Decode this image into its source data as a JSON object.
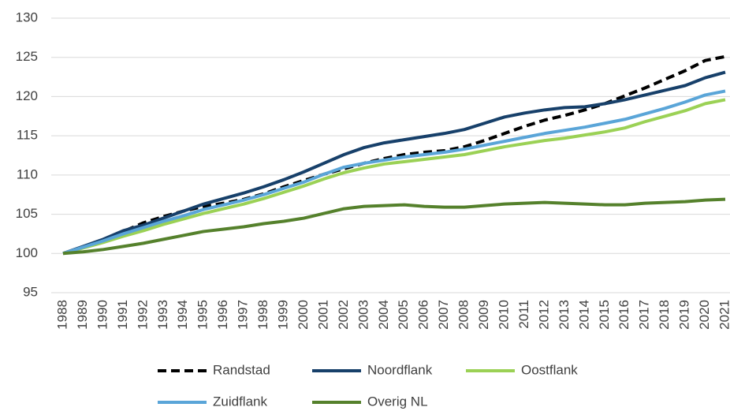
{
  "chart_data": {
    "type": "line",
    "categories": [
      "1988",
      "1989",
      "1990",
      "1991",
      "1992",
      "1993",
      "1994",
      "1995",
      "1996",
      "1997",
      "1998",
      "1999",
      "2000",
      "2001",
      "2002",
      "2003",
      "2004",
      "2005",
      "2006",
      "2007",
      "2008",
      "2009",
      "2010",
      "2011",
      "2012",
      "2013",
      "2014",
      "2015",
      "2016",
      "2017",
      "2018",
      "2019",
      "2020",
      "2021"
    ],
    "series": [
      {
        "name": "Randstad",
        "color": "#000000",
        "dash": true,
        "values": [
          100,
          100.8,
          101.7,
          102.8,
          103.9,
          104.7,
          105.4,
          106,
          106.4,
          106.9,
          107.6,
          108.5,
          109.3,
          110.1,
          110.8,
          111.5,
          112.1,
          112.6,
          112.9,
          113.1,
          113.6,
          114.4,
          115.3,
          116.2,
          117,
          117.6,
          118.3,
          119.1,
          120.1,
          121.1,
          122.2,
          123.3,
          124.6,
          125.1
        ]
      },
      {
        "name": "Noordflank",
        "color": "#17406a",
        "values": [
          100,
          100.9,
          101.8,
          102.9,
          103.6,
          104.5,
          105.4,
          106.3,
          107,
          107.7,
          108.5,
          109.4,
          110.4,
          111.5,
          112.6,
          113.5,
          114.1,
          114.5,
          114.9,
          115.3,
          115.8,
          116.6,
          117.4,
          117.9,
          118.3,
          118.6,
          118.7,
          119.1,
          119.6,
          120.2,
          120.8,
          121.4,
          122.4,
          123.1
        ]
      },
      {
        "name": "Oostflank",
        "color": "#9bd155",
        "values": [
          100,
          100.7,
          101.4,
          102.2,
          102.9,
          103.7,
          104.4,
          105.1,
          105.7,
          106.3,
          107,
          107.8,
          108.6,
          109.5,
          110.3,
          110.9,
          111.4,
          111.7,
          112,
          112.3,
          112.6,
          113.1,
          113.6,
          114,
          114.4,
          114.7,
          115.1,
          115.5,
          116,
          116.8,
          117.5,
          118.2,
          119.1,
          119.6
        ]
      },
      {
        "name": "Zuidflank",
        "color": "#5aa5d8",
        "values": [
          100,
          100.8,
          101.6,
          102.5,
          103.3,
          104.1,
          104.8,
          105.6,
          106.2,
          106.8,
          107.5,
          108.3,
          109.1,
          110.1,
          111,
          111.5,
          111.9,
          112.3,
          112.6,
          112.9,
          113.3,
          113.8,
          114.3,
          114.8,
          115.3,
          115.7,
          116.1,
          116.6,
          117.1,
          117.8,
          118.5,
          119.3,
          120.2,
          120.7
        ]
      },
      {
        "name": "Overig NL",
        "color": "#55812c",
        "values": [
          100,
          100.2,
          100.5,
          100.9,
          101.3,
          101.8,
          102.3,
          102.8,
          103.1,
          103.4,
          103.8,
          104.1,
          104.5,
          105.1,
          105.7,
          106,
          106.1,
          106.2,
          106,
          105.9,
          105.9,
          106.1,
          106.3,
          106.4,
          106.5,
          106.4,
          106.3,
          106.2,
          106.2,
          106.4,
          106.5,
          106.6,
          106.8,
          106.9
        ]
      }
    ],
    "ylim": [
      95,
      130
    ],
    "yticks": [
      95,
      100,
      105,
      110,
      115,
      120,
      125,
      130
    ],
    "grid": true,
    "legend": "bottom"
  }
}
